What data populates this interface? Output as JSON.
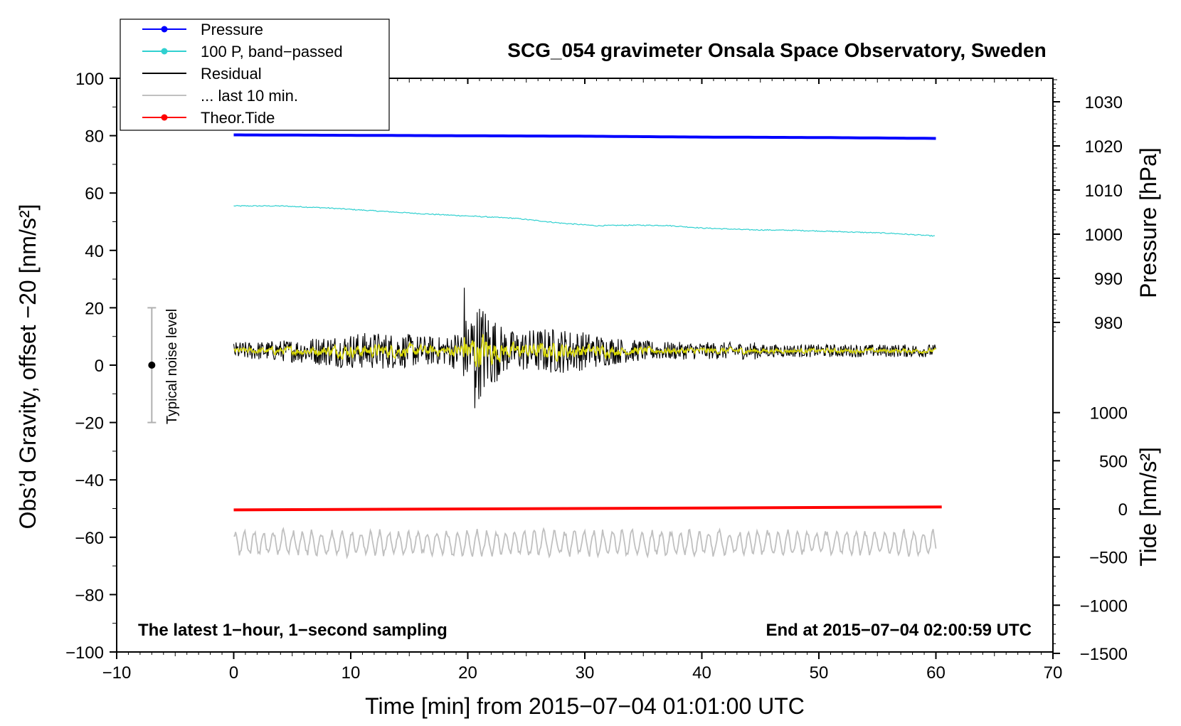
{
  "chart_data": {
    "type": "line",
    "title": "SCG_054 gravimeter Onsala Space Observatory, Sweden",
    "xlabel": "Time [min] from 2015−07−04 01:01:00 UTC",
    "ylabel_left": "Obs’d Gravity, offset −20 [nm/s²]",
    "ylabel_right_pressure": "Pressure [hPa]",
    "ylabel_right_tide": "Tide [nm/s²]",
    "xlim": [
      -10,
      70
    ],
    "ylim": [
      -100,
      100
    ],
    "x_ticks": [
      "−10",
      "0",
      "10",
      "20",
      "30",
      "40",
      "50",
      "60",
      "70"
    ],
    "y_ticks": [
      "100",
      "80",
      "60",
      "40",
      "20",
      "0",
      "−20",
      "−40",
      "−60",
      "−80",
      "−100"
    ],
    "pressure_ticks": [
      "1030",
      "1020",
      "1010",
      "1000",
      "990",
      "980"
    ],
    "tide_ticks": [
      "1000",
      "500",
      "0",
      "−500",
      "−1000",
      "−1500"
    ],
    "footer_left": "The latest 1−hour, 1−second sampling",
    "footer_right": "End at 2015−07−04 02:00:59 UTC",
    "noise_label": "Typical noise level",
    "noise_bar": {
      "x": -7,
      "y_low": -20,
      "y_high": 20,
      "y_center": 0
    },
    "legend": [
      {
        "label": "Pressure",
        "color": "#0000ff",
        "marker": true
      },
      {
        "label": "100 P, band−passed",
        "color": "#30d0d0",
        "marker": true
      },
      {
        "label": "Residual",
        "color": "#000000",
        "marker": false
      },
      {
        "label": "... last 10 min.",
        "color": "#c0c0c0",
        "marker": false
      },
      {
        "label": "Theor.Tide",
        "color": "#ff0000",
        "marker": true
      }
    ],
    "series": [
      {
        "name": "Pressure",
        "color": "#0000ff",
        "axis": "pressure_hPa",
        "x": [
          0,
          10,
          20,
          30,
          40,
          50,
          60
        ],
        "y": [
          1022.5,
          1022.4,
          1022.3,
          1022.2,
          1022.0,
          1021.9,
          1021.7
        ]
      },
      {
        "name": "100 P, band−passed",
        "color": "#30d0d0",
        "axis": "gravity",
        "x": [
          0,
          4,
          8,
          12,
          16,
          20,
          24,
          28,
          31,
          34,
          37,
          40,
          44,
          48,
          52,
          56,
          60
        ],
        "y": [
          55.5,
          55.5,
          54.8,
          53.8,
          52.8,
          52.0,
          51.2,
          49.5,
          48.6,
          48.8,
          48.7,
          47.8,
          47.2,
          47.0,
          46.5,
          46.0,
          45.0
        ]
      },
      {
        "name": "Residual",
        "color": "#000000",
        "axis": "gravity",
        "x_range": [
          0,
          60
        ],
        "baseline": 5,
        "burst_center_min": 21,
        "burst_peak": 27,
        "burst_trough": -15
      },
      {
        "name": "Residual, smoothed",
        "color": "#d8d800",
        "axis": "gravity",
        "x_range": [
          0,
          60
        ],
        "baseline": 5
      },
      {
        "name": "... last 10 min.",
        "color": "#c0c0c0",
        "axis": "gravity",
        "x_range": [
          0,
          60
        ],
        "baseline": -62
      },
      {
        "name": "Theor.Tide",
        "color": "#ff0000",
        "axis": "tide_nms2",
        "x": [
          0,
          60.5
        ],
        "y": [
          -10,
          20
        ]
      }
    ]
  }
}
